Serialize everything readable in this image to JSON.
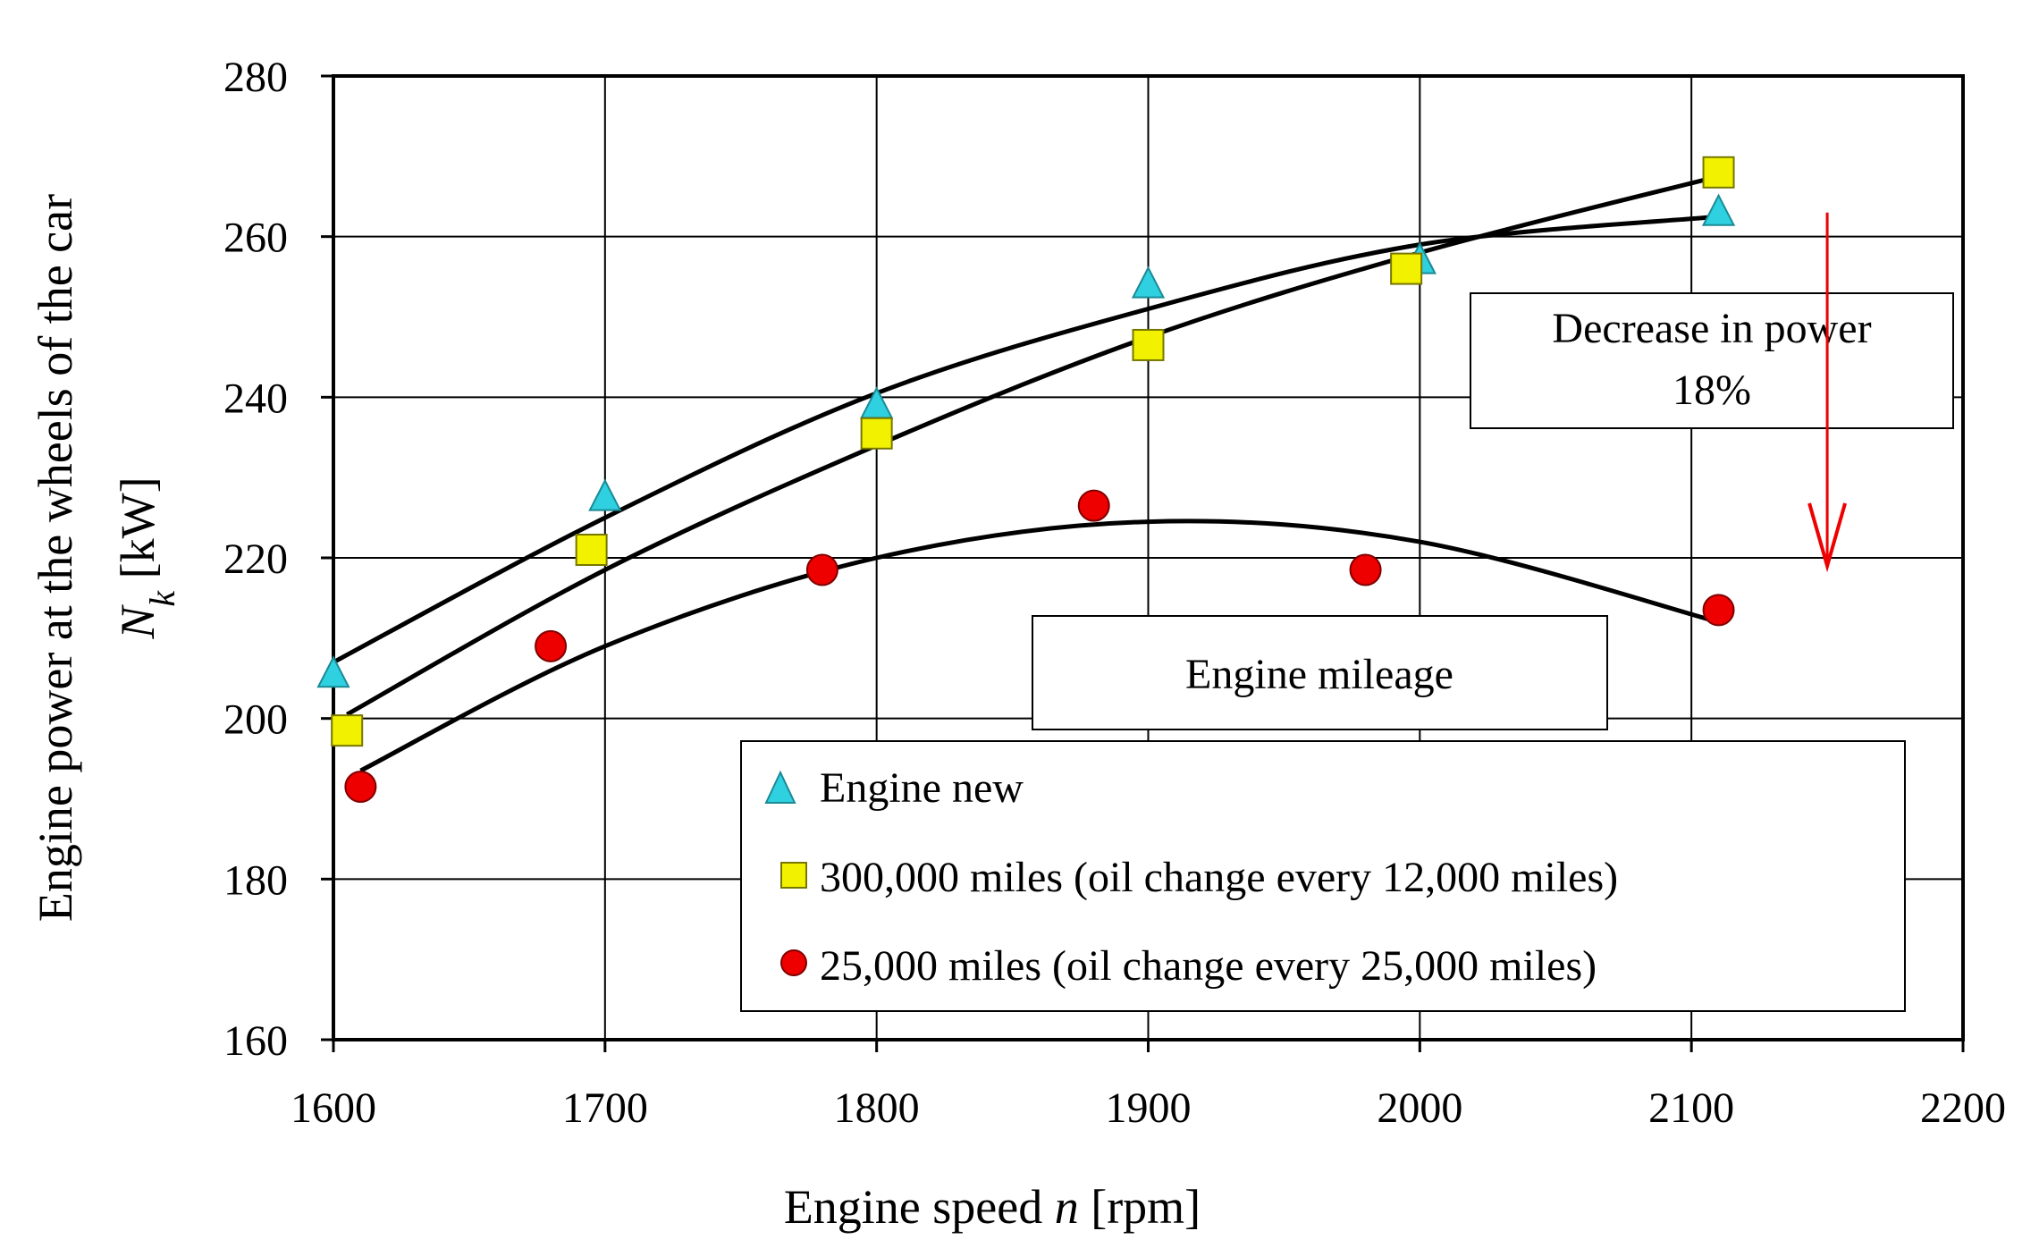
{
  "chart_data": {
    "type": "scatter",
    "xlabel_prefix": "Engine speed ",
    "xlabel_var": "n",
    "xlabel_unit": " [rpm]",
    "ylabel_line1": "Engine power at the wheels of the car",
    "ylabel_var": "N",
    "ylabel_sub": "k",
    "ylabel_unit": " [kW]",
    "xlim": [
      1600,
      2200
    ],
    "ylim": [
      160,
      280
    ],
    "xticks": [
      1600,
      1700,
      1800,
      1900,
      2000,
      2100,
      2200
    ],
    "yticks": [
      160,
      180,
      200,
      220,
      240,
      260,
      280
    ],
    "grid": true,
    "series": [
      {
        "name": "Engine new",
        "marker": "triangle",
        "color": "#2fd0e0",
        "points": [
          [
            1600,
            205.5
          ],
          [
            1700,
            227.5
          ],
          [
            1800,
            239
          ],
          [
            1900,
            254
          ],
          [
            2000,
            257
          ],
          [
            2110,
            263
          ]
        ],
        "trend": [
          [
            1600,
            207
          ],
          [
            1700,
            225
          ],
          [
            1800,
            240.5
          ],
          [
            1900,
            251
          ],
          [
            2000,
            259
          ],
          [
            2110,
            262.5
          ]
        ]
      },
      {
        "name": "300,000 miles (oil change every 12,000 miles)",
        "marker": "square",
        "color": "#f2f200",
        "points": [
          [
            1605,
            198.5
          ],
          [
            1695,
            221
          ],
          [
            1800,
            235.5
          ],
          [
            1900,
            246.5
          ],
          [
            1995,
            256
          ],
          [
            2110,
            268
          ]
        ],
        "trend": [
          [
            1605,
            200.5
          ],
          [
            1700,
            218.5
          ],
          [
            1800,
            234
          ],
          [
            1900,
            247.5
          ],
          [
            2000,
            258
          ],
          [
            2110,
            267.5
          ]
        ]
      },
      {
        "name": "25,000 miles (oil change every 25,000 miles)",
        "marker": "circle",
        "color": "#ee0000",
        "points": [
          [
            1610,
            191.5
          ],
          [
            1680,
            209
          ],
          [
            1780,
            218.5
          ],
          [
            1880,
            226.5
          ],
          [
            1980,
            218.5
          ],
          [
            2110,
            213.5
          ]
        ],
        "trend": [
          [
            1610,
            193.5
          ],
          [
            1700,
            209
          ],
          [
            1800,
            220
          ],
          [
            1900,
            224.5
          ],
          [
            2000,
            222
          ],
          [
            2110,
            212
          ]
        ]
      }
    ],
    "annotations": {
      "decrease_line1": "Decrease in power",
      "decrease_line2": "18%",
      "mileage": "Engine mileage",
      "arrow_color": "#ee0000",
      "arrow_from": [
        2150,
        263
      ],
      "arrow_to": [
        2150,
        219
      ]
    }
  }
}
